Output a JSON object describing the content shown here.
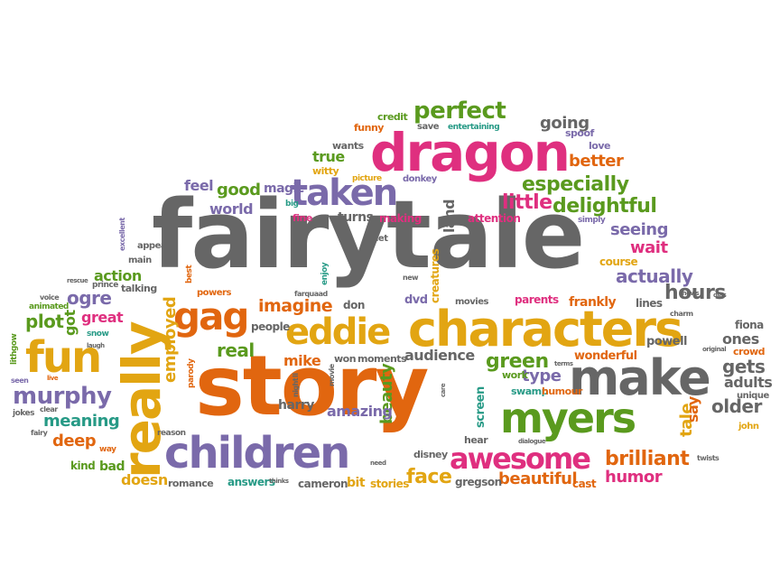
{
  "palette": {
    "gray": "#666666",
    "orange": "#e1660f",
    "pink": "#df2f7f",
    "green": "#5a9a1e",
    "purple": "#7a6aaa",
    "gold": "#e2a512",
    "teal": "#279a86"
  },
  "words": [
    {
      "t": "fairytale",
      "c": "gray"
    },
    {
      "t": "story",
      "c": "orange"
    },
    {
      "t": "dragon",
      "c": "pink"
    },
    {
      "t": "characters",
      "c": "gold"
    },
    {
      "t": "make",
      "c": "gray"
    },
    {
      "t": "really",
      "c": "gold"
    },
    {
      "t": "myers",
      "c": "green"
    },
    {
      "t": "children",
      "c": "purple"
    },
    {
      "t": "fun",
      "c": "gold"
    },
    {
      "t": "eddie",
      "c": "gold"
    },
    {
      "t": "taken",
      "c": "purple"
    },
    {
      "t": "awesome",
      "c": "pink"
    },
    {
      "t": "gag",
      "c": "orange"
    },
    {
      "t": "perfect",
      "c": "green"
    },
    {
      "t": "murphy",
      "c": "purple"
    },
    {
      "t": "brilliant",
      "c": "orange"
    },
    {
      "t": "especially",
      "c": "green"
    },
    {
      "t": "delightful",
      "c": "green"
    },
    {
      "t": "little",
      "c": "pink"
    },
    {
      "t": "face",
      "c": "gold"
    },
    {
      "t": "beautiful",
      "c": "orange"
    },
    {
      "t": "imagine",
      "c": "orange"
    },
    {
      "t": "green",
      "c": "green"
    },
    {
      "t": "ogre",
      "c": "purple"
    },
    {
      "t": "plot",
      "c": "green"
    },
    {
      "t": "hours",
      "c": "gray"
    },
    {
      "t": "actually",
      "c": "purple"
    },
    {
      "t": "meaning",
      "c": "teal"
    },
    {
      "t": "deep",
      "c": "orange"
    },
    {
      "t": "employed",
      "c": "gold"
    },
    {
      "t": "real",
      "c": "green"
    },
    {
      "t": "great",
      "c": "pink"
    },
    {
      "t": "got",
      "c": "green"
    },
    {
      "t": "action",
      "c": "green"
    },
    {
      "t": "audience",
      "c": "gray"
    },
    {
      "t": "older",
      "c": "gray"
    },
    {
      "t": "gets",
      "c": "gray"
    },
    {
      "t": "ones",
      "c": "gray"
    },
    {
      "t": "adults",
      "c": "gray"
    },
    {
      "t": "humor",
      "c": "pink"
    },
    {
      "t": "beauty",
      "c": "green"
    },
    {
      "t": "tale",
      "c": "gold"
    },
    {
      "t": "type",
      "c": "purple"
    },
    {
      "t": "say",
      "c": "orange"
    },
    {
      "t": "seeing",
      "c": "purple"
    },
    {
      "t": "wait",
      "c": "pink"
    },
    {
      "t": "better",
      "c": "orange"
    },
    {
      "t": "going",
      "c": "gray"
    },
    {
      "t": "good",
      "c": "green"
    },
    {
      "t": "feel",
      "c": "purple"
    },
    {
      "t": "world",
      "c": "purple"
    },
    {
      "t": "true",
      "c": "green"
    },
    {
      "t": "land",
      "c": "gray"
    },
    {
      "t": "mike",
      "c": "orange"
    },
    {
      "t": "amazing",
      "c": "purple"
    },
    {
      "t": "harry",
      "c": "gray"
    },
    {
      "t": "cameron",
      "c": "gray"
    },
    {
      "t": "stories",
      "c": "gold"
    },
    {
      "t": "bit",
      "c": "gold"
    },
    {
      "t": "answers",
      "c": "teal"
    },
    {
      "t": "romance",
      "c": "gray"
    },
    {
      "t": "doesn",
      "c": "gold"
    },
    {
      "t": "bad",
      "c": "green"
    },
    {
      "t": "kind",
      "c": "green"
    },
    {
      "t": "gregson",
      "c": "gray"
    },
    {
      "t": "cast",
      "c": "orange"
    },
    {
      "t": "wonderful",
      "c": "orange"
    },
    {
      "t": "frankly",
      "c": "orange"
    },
    {
      "t": "lines",
      "c": "gray"
    },
    {
      "t": "parents",
      "c": "pink"
    },
    {
      "t": "course",
      "c": "gold"
    },
    {
      "t": "movies",
      "c": "gray"
    },
    {
      "t": "dvd",
      "c": "purple"
    },
    {
      "t": "creatures",
      "c": "gold"
    },
    {
      "t": "turns",
      "c": "gray"
    },
    {
      "t": "making",
      "c": "pink"
    },
    {
      "t": "attention",
      "c": "pink"
    },
    {
      "t": "magic",
      "c": "purple"
    },
    {
      "t": "people",
      "c": "gray"
    },
    {
      "t": "don",
      "c": "gray"
    },
    {
      "t": "moments",
      "c": "gray"
    },
    {
      "t": "won",
      "c": "gray"
    },
    {
      "t": "screen",
      "c": "teal"
    },
    {
      "t": "work",
      "c": "green"
    },
    {
      "t": "swamp",
      "c": "teal"
    },
    {
      "t": "humour",
      "c": "orange"
    },
    {
      "t": "powell",
      "c": "gray"
    },
    {
      "t": "crowd",
      "c": "orange"
    },
    {
      "t": "fiona",
      "c": "gray"
    },
    {
      "t": "unique",
      "c": "gray"
    },
    {
      "t": "john",
      "c": "gold"
    },
    {
      "t": "twists",
      "c": "gray"
    },
    {
      "t": "hear",
      "c": "gray"
    },
    {
      "t": "disney",
      "c": "gray"
    },
    {
      "t": "credit",
      "c": "green"
    },
    {
      "t": "funny",
      "c": "orange"
    },
    {
      "t": "save",
      "c": "gray"
    },
    {
      "t": "entertaining",
      "c": "teal"
    },
    {
      "t": "spoof",
      "c": "purple"
    },
    {
      "t": "love",
      "c": "purple"
    },
    {
      "t": "wants",
      "c": "gray"
    },
    {
      "t": "witty",
      "c": "gold"
    },
    {
      "t": "picture",
      "c": "gold"
    },
    {
      "t": "donkey",
      "c": "purple"
    },
    {
      "t": "fine",
      "c": "pink"
    },
    {
      "t": "big",
      "c": "teal"
    },
    {
      "t": "simply",
      "c": "purple"
    },
    {
      "t": "let",
      "c": "gray"
    },
    {
      "t": "new",
      "c": "gray"
    },
    {
      "t": "enjoy",
      "c": "teal"
    },
    {
      "t": "best",
      "c": "orange"
    },
    {
      "t": "powers",
      "c": "orange"
    },
    {
      "t": "farquaad",
      "c": "gray"
    },
    {
      "t": "talking",
      "c": "gray"
    },
    {
      "t": "appeal",
      "c": "gray"
    },
    {
      "t": "main",
      "c": "gray"
    },
    {
      "t": "excellent",
      "c": "purple"
    },
    {
      "t": "prince",
      "c": "gray"
    },
    {
      "t": "rescue",
      "c": "gray"
    },
    {
      "t": "voice",
      "c": "gray"
    },
    {
      "t": "animated",
      "c": "green"
    },
    {
      "t": "snow",
      "c": "teal"
    },
    {
      "t": "laugh",
      "c": "gray"
    },
    {
      "t": "lithgow",
      "c": "green"
    },
    {
      "t": "live",
      "c": "orange"
    },
    {
      "t": "seen",
      "c": "purple"
    },
    {
      "t": "clear",
      "c": "gray"
    },
    {
      "t": "jokes",
      "c": "gray"
    },
    {
      "t": "fairy",
      "c": "gray"
    },
    {
      "t": "reason",
      "c": "gray"
    },
    {
      "t": "parody",
      "c": "orange"
    },
    {
      "t": "ll",
      "c": "gray"
    },
    {
      "t": "night",
      "c": "gray"
    },
    {
      "t": "movie",
      "c": "gray"
    },
    {
      "t": "thinks",
      "c": "gray"
    },
    {
      "t": "need",
      "c": "gray"
    },
    {
      "t": "terms",
      "c": "gray"
    },
    {
      "t": "care",
      "c": "gray"
    },
    {
      "t": "dialogue",
      "c": "gray"
    },
    {
      "t": "original",
      "c": "gray"
    },
    {
      "t": "shows",
      "c": "gray"
    },
    {
      "t": "charm",
      "c": "gray"
    },
    {
      "t": "dias",
      "c": "gray"
    },
    {
      "t": "way",
      "c": "orange"
    }
  ]
}
